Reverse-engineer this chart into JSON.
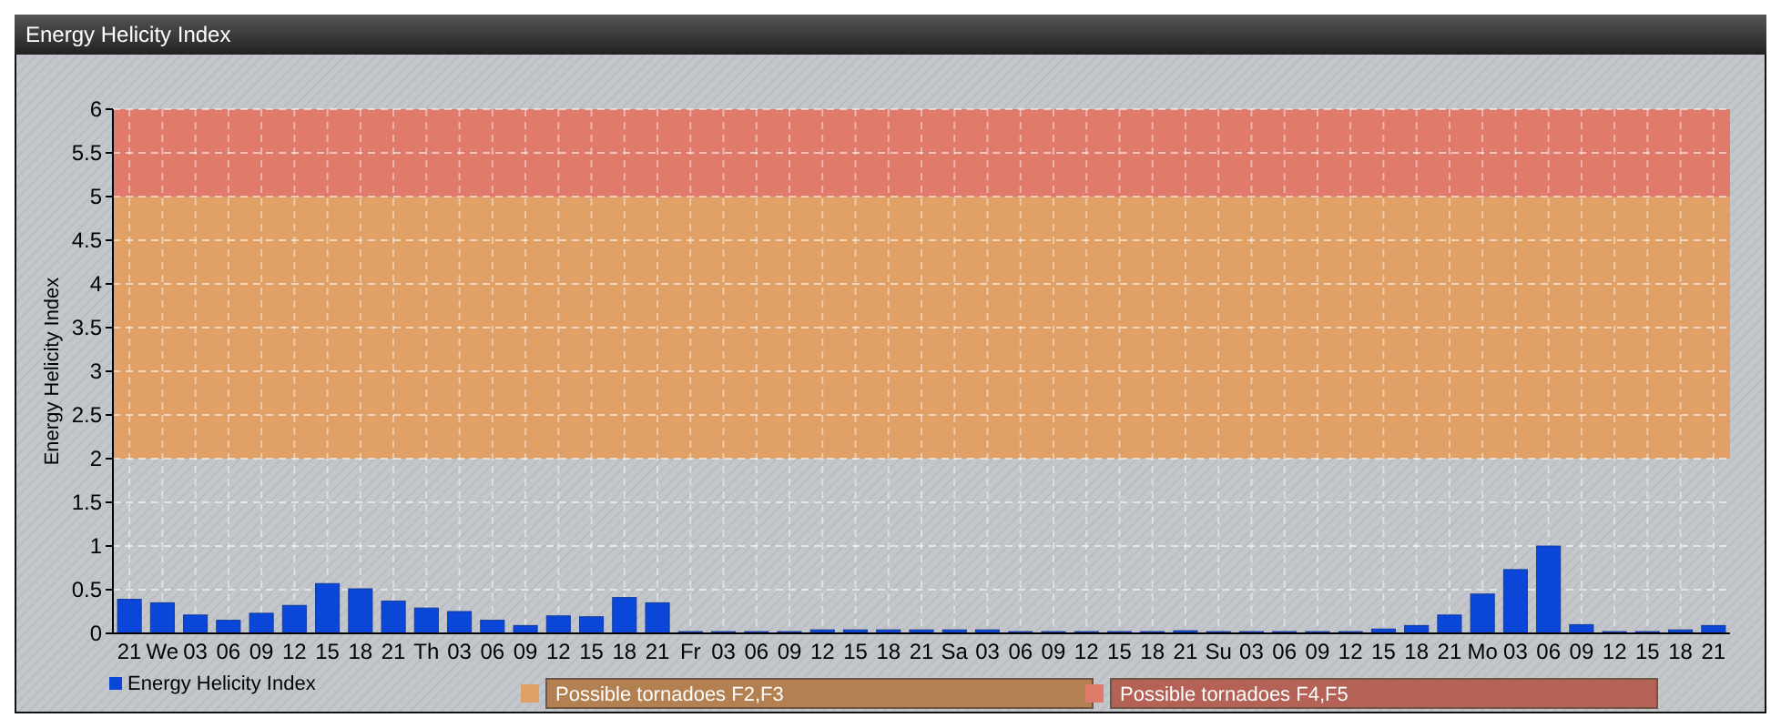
{
  "chart_data": {
    "type": "bar",
    "title": "Energy Helicity Index",
    "ylabel": "Energy Helicity Index",
    "categories": [
      "21",
      "We",
      "03",
      "06",
      "09",
      "12",
      "15",
      "18",
      "21",
      "Th",
      "03",
      "06",
      "09",
      "12",
      "15",
      "18",
      "21",
      "Fr",
      "03",
      "06",
      "09",
      "12",
      "15",
      "18",
      "21",
      "Sa",
      "03",
      "06",
      "09",
      "12",
      "15",
      "18",
      "21",
      "Su",
      "03",
      "06",
      "09",
      "12",
      "15",
      "18",
      "21",
      "Mo",
      "03",
      "06",
      "09",
      "12",
      "15",
      "18",
      "21"
    ],
    "series": [
      {
        "name": "Energy Helicity Index",
        "color": "#0a47d9",
        "values": [
          0.39,
          0.35,
          0.21,
          0.15,
          0.23,
          0.32,
          0.57,
          0.51,
          0.37,
          0.29,
          0.25,
          0.15,
          0.09,
          0.2,
          0.19,
          0.41,
          0.35,
          0.02,
          0.02,
          0.02,
          0.02,
          0.04,
          0.04,
          0.04,
          0.04,
          0.04,
          0.04,
          0.02,
          0.02,
          0.02,
          0.02,
          0.02,
          0.03,
          0.02,
          0.02,
          0.02,
          0.02,
          0.02,
          0.05,
          0.09,
          0.21,
          0.45,
          0.73,
          1.0,
          0.1,
          0.02,
          0.02,
          0.04,
          0.09
        ]
      }
    ],
    "ylim": [
      0,
      6
    ],
    "yticks": [
      0,
      0.5,
      1,
      1.5,
      2,
      2.5,
      3,
      3.5,
      4,
      4.5,
      5,
      5.5,
      6
    ],
    "grid": true,
    "legend": "bottom left",
    "bands": [
      {
        "axis": "y",
        "from": 2,
        "to": 5,
        "label": "Possible tornadoes F2,F3",
        "color": "#e0a066"
      },
      {
        "axis": "y",
        "from": 5,
        "to": 6,
        "label": "Possible tornadoes F4,F5",
        "color": "#e07a6a"
      }
    ]
  }
}
